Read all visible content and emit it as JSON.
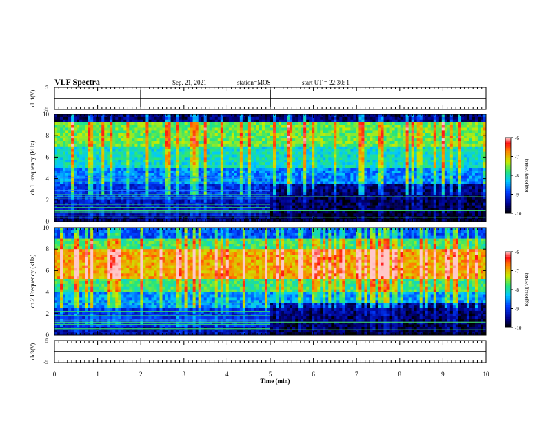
{
  "header": {
    "title": "VLF Spectra",
    "date": "Sep. 21, 2021",
    "station": "station=MOS",
    "start_time": "start UT = 22:30: 1"
  },
  "x_axis": {
    "label": "Time (min)",
    "ticks": [
      "0",
      "1",
      "2",
      "3",
      "4",
      "5",
      "6",
      "7",
      "8",
      "9",
      "10"
    ]
  },
  "chart_data": [
    {
      "type": "line",
      "name": "ch1-waveform",
      "ylabel": "ch.1(V)",
      "xlim": [
        0,
        10
      ],
      "ylim": [
        -5,
        5
      ],
      "y_tick_labels": [
        "5",
        "-5"
      ],
      "x": [
        0,
        10
      ],
      "values": [
        0,
        0
      ],
      "spikes_min": [
        2.0,
        5.0
      ]
    },
    {
      "type": "heatmap",
      "name": "ch1-spectrogram",
      "ylabel": "ch.1 Frequency (kHz)",
      "xlim": [
        0,
        10
      ],
      "ylim": [
        0,
        10
      ],
      "y_tick_labels": [
        "0",
        "2",
        "4",
        "6",
        "8",
        "10"
      ],
      "colorbar": {
        "label": "log(PSD)(V²/Hz)",
        "range": [
          -10,
          -6
        ],
        "tick_labels": [
          "-6",
          "-7",
          "-8",
          "-9",
          "-10"
        ]
      },
      "overall_level": -8.6,
      "band_rows": [
        {
          "f0": 0,
          "f1": 0.6,
          "level": -9.6
        },
        {
          "f0": 0.6,
          "f1": 2.0,
          "level": -9.3
        },
        {
          "f0": 2.0,
          "f1": 3.5,
          "level": -9.0
        },
        {
          "f0": 3.5,
          "f1": 5.0,
          "level": -8.6
        },
        {
          "f0": 5.0,
          "f1": 7.0,
          "level": -8.1
        },
        {
          "f0": 7.0,
          "f1": 9.2,
          "level": -7.6
        },
        {
          "f0": 9.2,
          "f1": 10,
          "level": -9.6
        }
      ],
      "after_5min": {
        "low_band_top_khz": 3.5,
        "low_level": -9.9
      },
      "lines_before_5min_khz": [
        0.6,
        0.9,
        1.3,
        1.6,
        2.1,
        2.5,
        2.9,
        3.3,
        3.7,
        4.1
      ],
      "lines_all_khz": [
        0.4,
        1.0,
        2.3
      ]
    },
    {
      "type": "heatmap",
      "name": "ch2-spectrogram",
      "ylabel": "ch.2 Frequency (kHz)",
      "xlim": [
        0,
        10
      ],
      "ylim": [
        0,
        10
      ],
      "y_tick_labels": [
        "0",
        "2",
        "4",
        "6",
        "8",
        "10"
      ],
      "colorbar": {
        "label": "log(PSD)(V²/Hz)",
        "range": [
          -10,
          -6
        ],
        "tick_labels": [
          "-6",
          "-7",
          "-8",
          "-9",
          "-10"
        ]
      },
      "overall_level": -7.9,
      "band_rows": [
        {
          "f0": 0,
          "f1": 0.8,
          "level": -9.4
        },
        {
          "f0": 0.8,
          "f1": 2.5,
          "level": -9.0
        },
        {
          "f0": 2.5,
          "f1": 4.0,
          "level": -8.5
        },
        {
          "f0": 4.0,
          "f1": 5.2,
          "level": -7.8
        },
        {
          "f0": 5.2,
          "f1": 8.0,
          "level": -6.9
        },
        {
          "f0": 8.0,
          "f1": 9.0,
          "level": -7.8
        },
        {
          "f0": 9.0,
          "f1": 10,
          "level": -8.8
        }
      ],
      "after_5min": {
        "low_band_top_khz": 3.0,
        "low_level": -9.9
      },
      "lines_before_5min_khz": [
        0.6,
        1.0,
        1.4,
        1.8,
        2.2,
        2.6,
        3.0
      ],
      "lines_all_khz": [
        0.5,
        1.2
      ]
    },
    {
      "type": "line",
      "name": "ch3-waveform",
      "ylabel": "ch.3(V)",
      "xlim": [
        0,
        10
      ],
      "ylim": [
        -5,
        5
      ],
      "y_tick_labels": [
        "5",
        "-5"
      ],
      "x": [
        0,
        10
      ],
      "values": [
        0,
        0
      ],
      "spikes_min": []
    }
  ]
}
